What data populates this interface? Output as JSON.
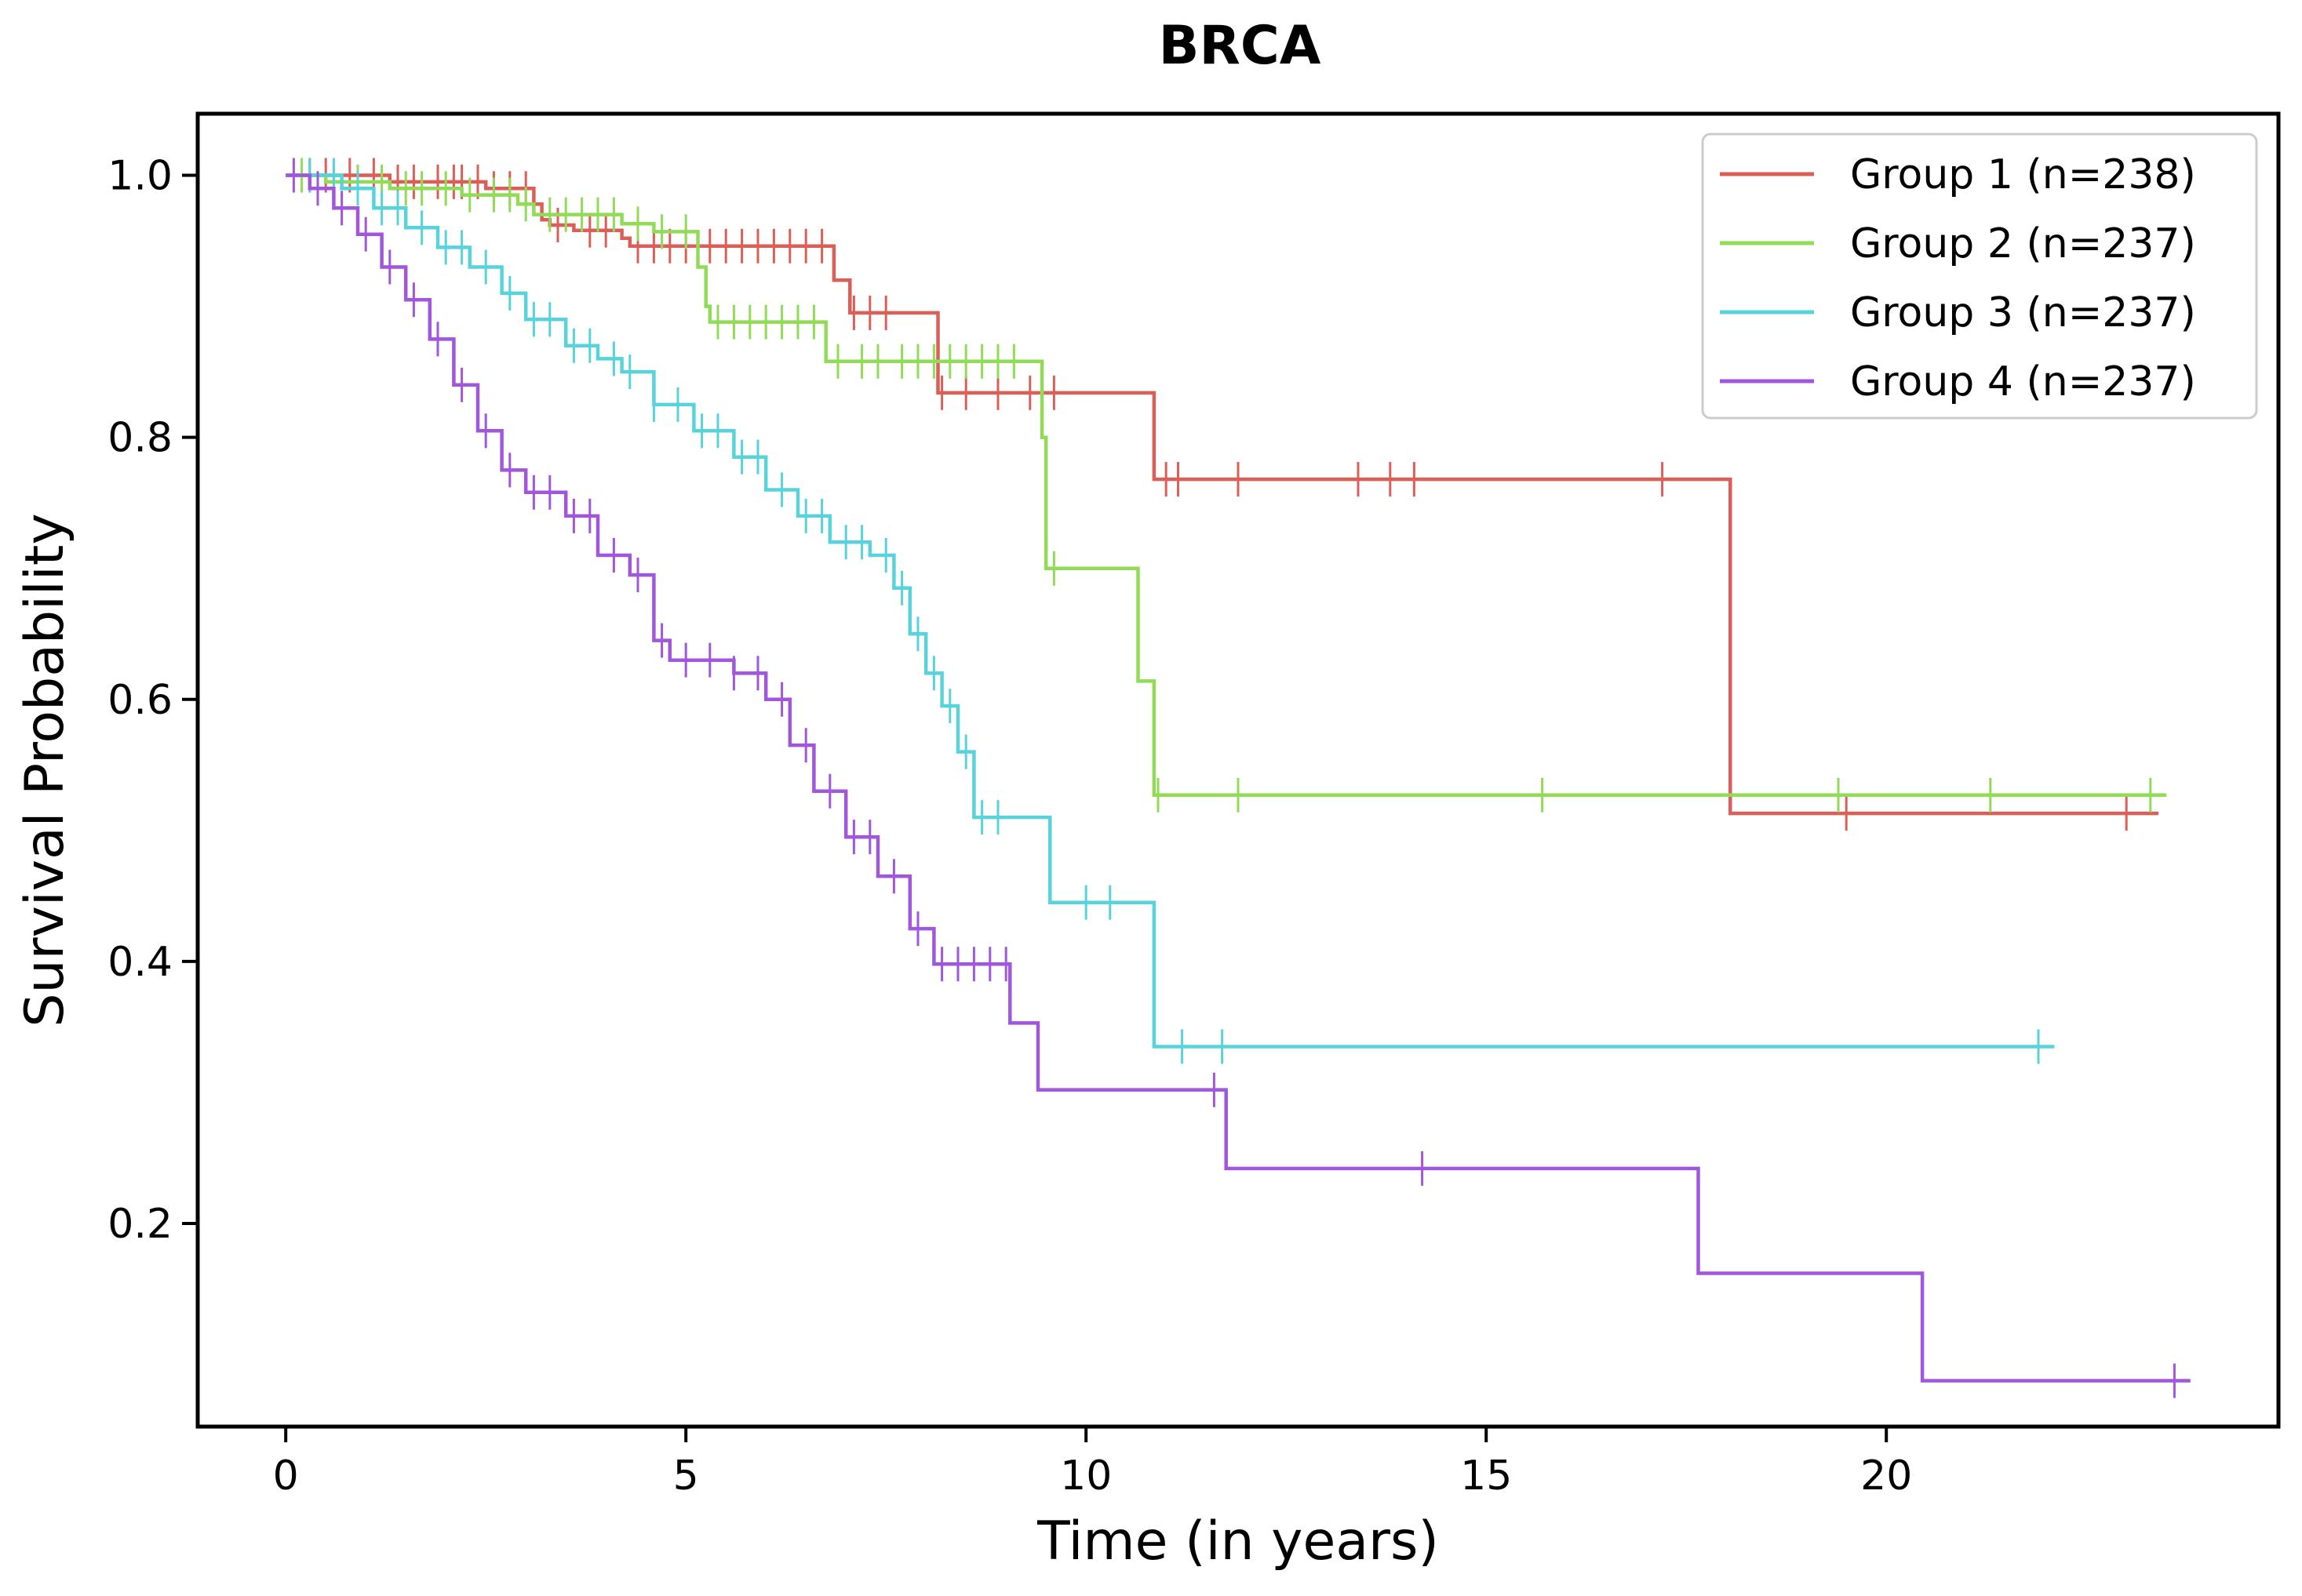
{
  "chart_data": {
    "type": "line",
    "subtype": "kaplan-meier step",
    "title": "BRCA",
    "xlabel": "Time (in years)",
    "ylabel": "Survival Probability",
    "xlim": [
      -1.1,
      24.9
    ],
    "ylim": [
      0.045,
      1.047
    ],
    "xticks": [
      0,
      5,
      10,
      15,
      20
    ],
    "yticks": [
      0.2,
      0.4,
      0.6,
      0.8,
      1.0
    ],
    "xtick_labels": [
      "0",
      "5",
      "10",
      "15",
      "20"
    ],
    "ytick_labels": [
      "0.2",
      "0.4",
      "0.6",
      "0.8",
      "1.0"
    ],
    "grid": false,
    "legend_position": "top-right",
    "series": [
      {
        "name": "Group 1 (n=238)",
        "color": "#db5f57",
        "steps": [
          [
            0,
            1.0
          ],
          [
            0.7,
            1.0
          ],
          [
            1.3,
            0.995
          ],
          [
            2.5,
            0.99
          ],
          [
            3.1,
            0.978
          ],
          [
            3.2,
            0.966
          ],
          [
            3.3,
            0.962
          ],
          [
            3.6,
            0.958
          ],
          [
            4.2,
            0.952
          ],
          [
            4.3,
            0.946
          ],
          [
            5.4,
            0.946
          ],
          [
            6.8,
            0.946
          ],
          [
            6.85,
            0.92
          ],
          [
            6.9,
            0.92
          ],
          [
            7.05,
            0.895
          ],
          [
            8.1,
            0.895
          ],
          [
            8.15,
            0.834
          ],
          [
            10.8,
            0.834
          ],
          [
            10.85,
            0.768
          ],
          [
            18.0,
            0.768
          ],
          [
            18.05,
            0.513
          ],
          [
            23.4,
            0.513
          ]
        ],
        "censored": [
          0.3,
          0.5,
          0.8,
          1.1,
          1.4,
          1.6,
          1.9,
          2.1,
          2.2,
          2.4,
          2.6,
          2.8,
          3.0,
          3.4,
          3.8,
          4.0,
          4.4,
          4.6,
          4.8,
          5.0,
          5.3,
          5.5,
          5.7,
          5.9,
          6.1,
          6.3,
          6.5,
          6.7,
          7.1,
          7.3,
          7.5,
          8.2,
          8.5,
          8.9,
          9.3,
          9.6,
          11.0,
          11.15,
          11.9,
          13.4,
          13.8,
          14.1,
          17.2,
          19.5,
          23.0
        ]
      },
      {
        "name": "Group 2 (n=237)",
        "color": "#91db57",
        "steps": [
          [
            0,
            1.0
          ],
          [
            0.5,
            0.995
          ],
          [
            1.3,
            0.99
          ],
          [
            2.2,
            0.985
          ],
          [
            2.9,
            0.978
          ],
          [
            3.1,
            0.97
          ],
          [
            4.2,
            0.963
          ],
          [
            4.6,
            0.957
          ],
          [
            5.1,
            0.957
          ],
          [
            5.15,
            0.93
          ],
          [
            5.25,
            0.9
          ],
          [
            5.3,
            0.888
          ],
          [
            6.7,
            0.888
          ],
          [
            6.75,
            0.858
          ],
          [
            9.4,
            0.858
          ],
          [
            9.45,
            0.8
          ],
          [
            9.5,
            0.7
          ],
          [
            10.6,
            0.7
          ],
          [
            10.65,
            0.614
          ],
          [
            10.8,
            0.614
          ],
          [
            10.85,
            0.527
          ],
          [
            23.5,
            0.527
          ]
        ],
        "censored": [
          0.2,
          0.6,
          0.9,
          1.2,
          1.5,
          1.7,
          2.0,
          2.3,
          2.6,
          2.8,
          3.0,
          3.3,
          3.5,
          3.7,
          3.9,
          4.1,
          4.4,
          4.7,
          5.0,
          5.4,
          5.6,
          5.8,
          6.0,
          6.2,
          6.4,
          6.6,
          6.9,
          7.2,
          7.4,
          7.7,
          7.9,
          8.1,
          8.3,
          8.5,
          8.7,
          8.9,
          9.1,
          9.6,
          10.9,
          11.9,
          15.7,
          19.4,
          21.3,
          23.3
        ]
      },
      {
        "name": "Group 3 (n=237)",
        "color": "#57d3db",
        "steps": [
          [
            0,
            1.0
          ],
          [
            0.7,
            0.99
          ],
          [
            1.1,
            0.975
          ],
          [
            1.5,
            0.96
          ],
          [
            1.9,
            0.945
          ],
          [
            2.3,
            0.93
          ],
          [
            2.7,
            0.91
          ],
          [
            3.0,
            0.89
          ],
          [
            3.5,
            0.87
          ],
          [
            3.9,
            0.86
          ],
          [
            4.2,
            0.85
          ],
          [
            4.6,
            0.825
          ],
          [
            5.1,
            0.805
          ],
          [
            5.6,
            0.785
          ],
          [
            6.0,
            0.76
          ],
          [
            6.4,
            0.74
          ],
          [
            6.8,
            0.72
          ],
          [
            7.3,
            0.71
          ],
          [
            7.6,
            0.685
          ],
          [
            7.8,
            0.65
          ],
          [
            8.0,
            0.62
          ],
          [
            8.2,
            0.595
          ],
          [
            8.4,
            0.56
          ],
          [
            8.6,
            0.51
          ],
          [
            9.5,
            0.51
          ],
          [
            9.55,
            0.445
          ],
          [
            10.8,
            0.445
          ],
          [
            10.85,
            0.335
          ],
          [
            22.1,
            0.335
          ]
        ],
        "censored": [
          0.3,
          0.6,
          0.9,
          1.2,
          1.4,
          1.7,
          2.0,
          2.2,
          2.5,
          2.8,
          3.1,
          3.3,
          3.6,
          3.8,
          4.1,
          4.3,
          4.6,
          4.9,
          5.2,
          5.4,
          5.7,
          5.9,
          6.2,
          6.5,
          6.7,
          7.0,
          7.2,
          7.5,
          7.7,
          7.9,
          8.1,
          8.3,
          8.5,
          8.7,
          8.9,
          10.0,
          10.3,
          11.2,
          11.7,
          21.9
        ]
      },
      {
        "name": "Group 4 (n=237)",
        "color": "#a157db",
        "steps": [
          [
            0,
            1.0
          ],
          [
            0.3,
            0.99
          ],
          [
            0.6,
            0.975
          ],
          [
            0.9,
            0.955
          ],
          [
            1.2,
            0.93
          ],
          [
            1.5,
            0.905
          ],
          [
            1.8,
            0.875
          ],
          [
            2.1,
            0.84
          ],
          [
            2.4,
            0.805
          ],
          [
            2.7,
            0.775
          ],
          [
            3.0,
            0.758
          ],
          [
            3.5,
            0.74
          ],
          [
            3.9,
            0.71
          ],
          [
            4.3,
            0.695
          ],
          [
            4.6,
            0.645
          ],
          [
            4.8,
            0.63
          ],
          [
            5.6,
            0.62
          ],
          [
            6.0,
            0.6
          ],
          [
            6.3,
            0.565
          ],
          [
            6.6,
            0.53
          ],
          [
            7.0,
            0.495
          ],
          [
            7.4,
            0.465
          ],
          [
            7.8,
            0.425
          ],
          [
            8.1,
            0.398
          ],
          [
            9.0,
            0.398
          ],
          [
            9.05,
            0.353
          ],
          [
            9.35,
            0.353
          ],
          [
            9.4,
            0.302
          ],
          [
            11.7,
            0.302
          ],
          [
            11.75,
            0.242
          ],
          [
            17.6,
            0.242
          ],
          [
            17.65,
            0.162
          ],
          [
            20.4,
            0.162
          ],
          [
            20.45,
            0.08
          ],
          [
            23.8,
            0.08
          ]
        ],
        "censored": [
          0.1,
          0.4,
          0.7,
          1.0,
          1.3,
          1.6,
          1.9,
          2.2,
          2.5,
          2.8,
          3.1,
          3.3,
          3.6,
          3.8,
          4.1,
          4.4,
          4.7,
          5.0,
          5.3,
          5.6,
          5.9,
          6.2,
          6.5,
          6.8,
          7.1,
          7.3,
          7.6,
          7.9,
          8.2,
          8.4,
          8.6,
          8.8,
          9.0,
          11.6,
          14.2,
          23.6
        ]
      }
    ]
  }
}
